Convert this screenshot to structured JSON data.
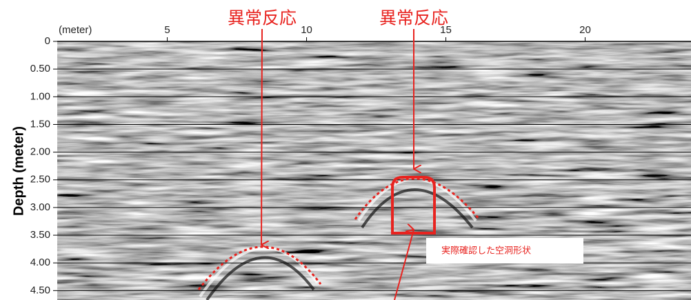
{
  "axes": {
    "x_unit_label": "(meter)",
    "xlim": [
      1.05,
      23.8
    ],
    "xticks": [
      5,
      10,
      15,
      20
    ],
    "y_label": "Depth (meter)",
    "ylim": [
      0,
      4.67
    ],
    "yticks": [
      0,
      {
        "value": 0.5,
        "label": "0.50"
      },
      {
        "value": 1,
        "label": "1.00"
      },
      {
        "value": 1.5,
        "label": "1.50"
      },
      {
        "value": 2,
        "label": "2.00"
      },
      {
        "value": 2.5,
        "label": "2.50"
      },
      {
        "value": 3,
        "label": "3.00"
      },
      {
        "value": 3.5,
        "label": "3.50"
      },
      {
        "value": 4,
        "label": "4.00"
      },
      {
        "value": 4.5,
        "label": "4.50"
      }
    ]
  },
  "annotations": {
    "anomaly_left": "異常反応",
    "anomaly_right": "異常反応",
    "cavity_note": "実際確認した空洞形状"
  }
}
